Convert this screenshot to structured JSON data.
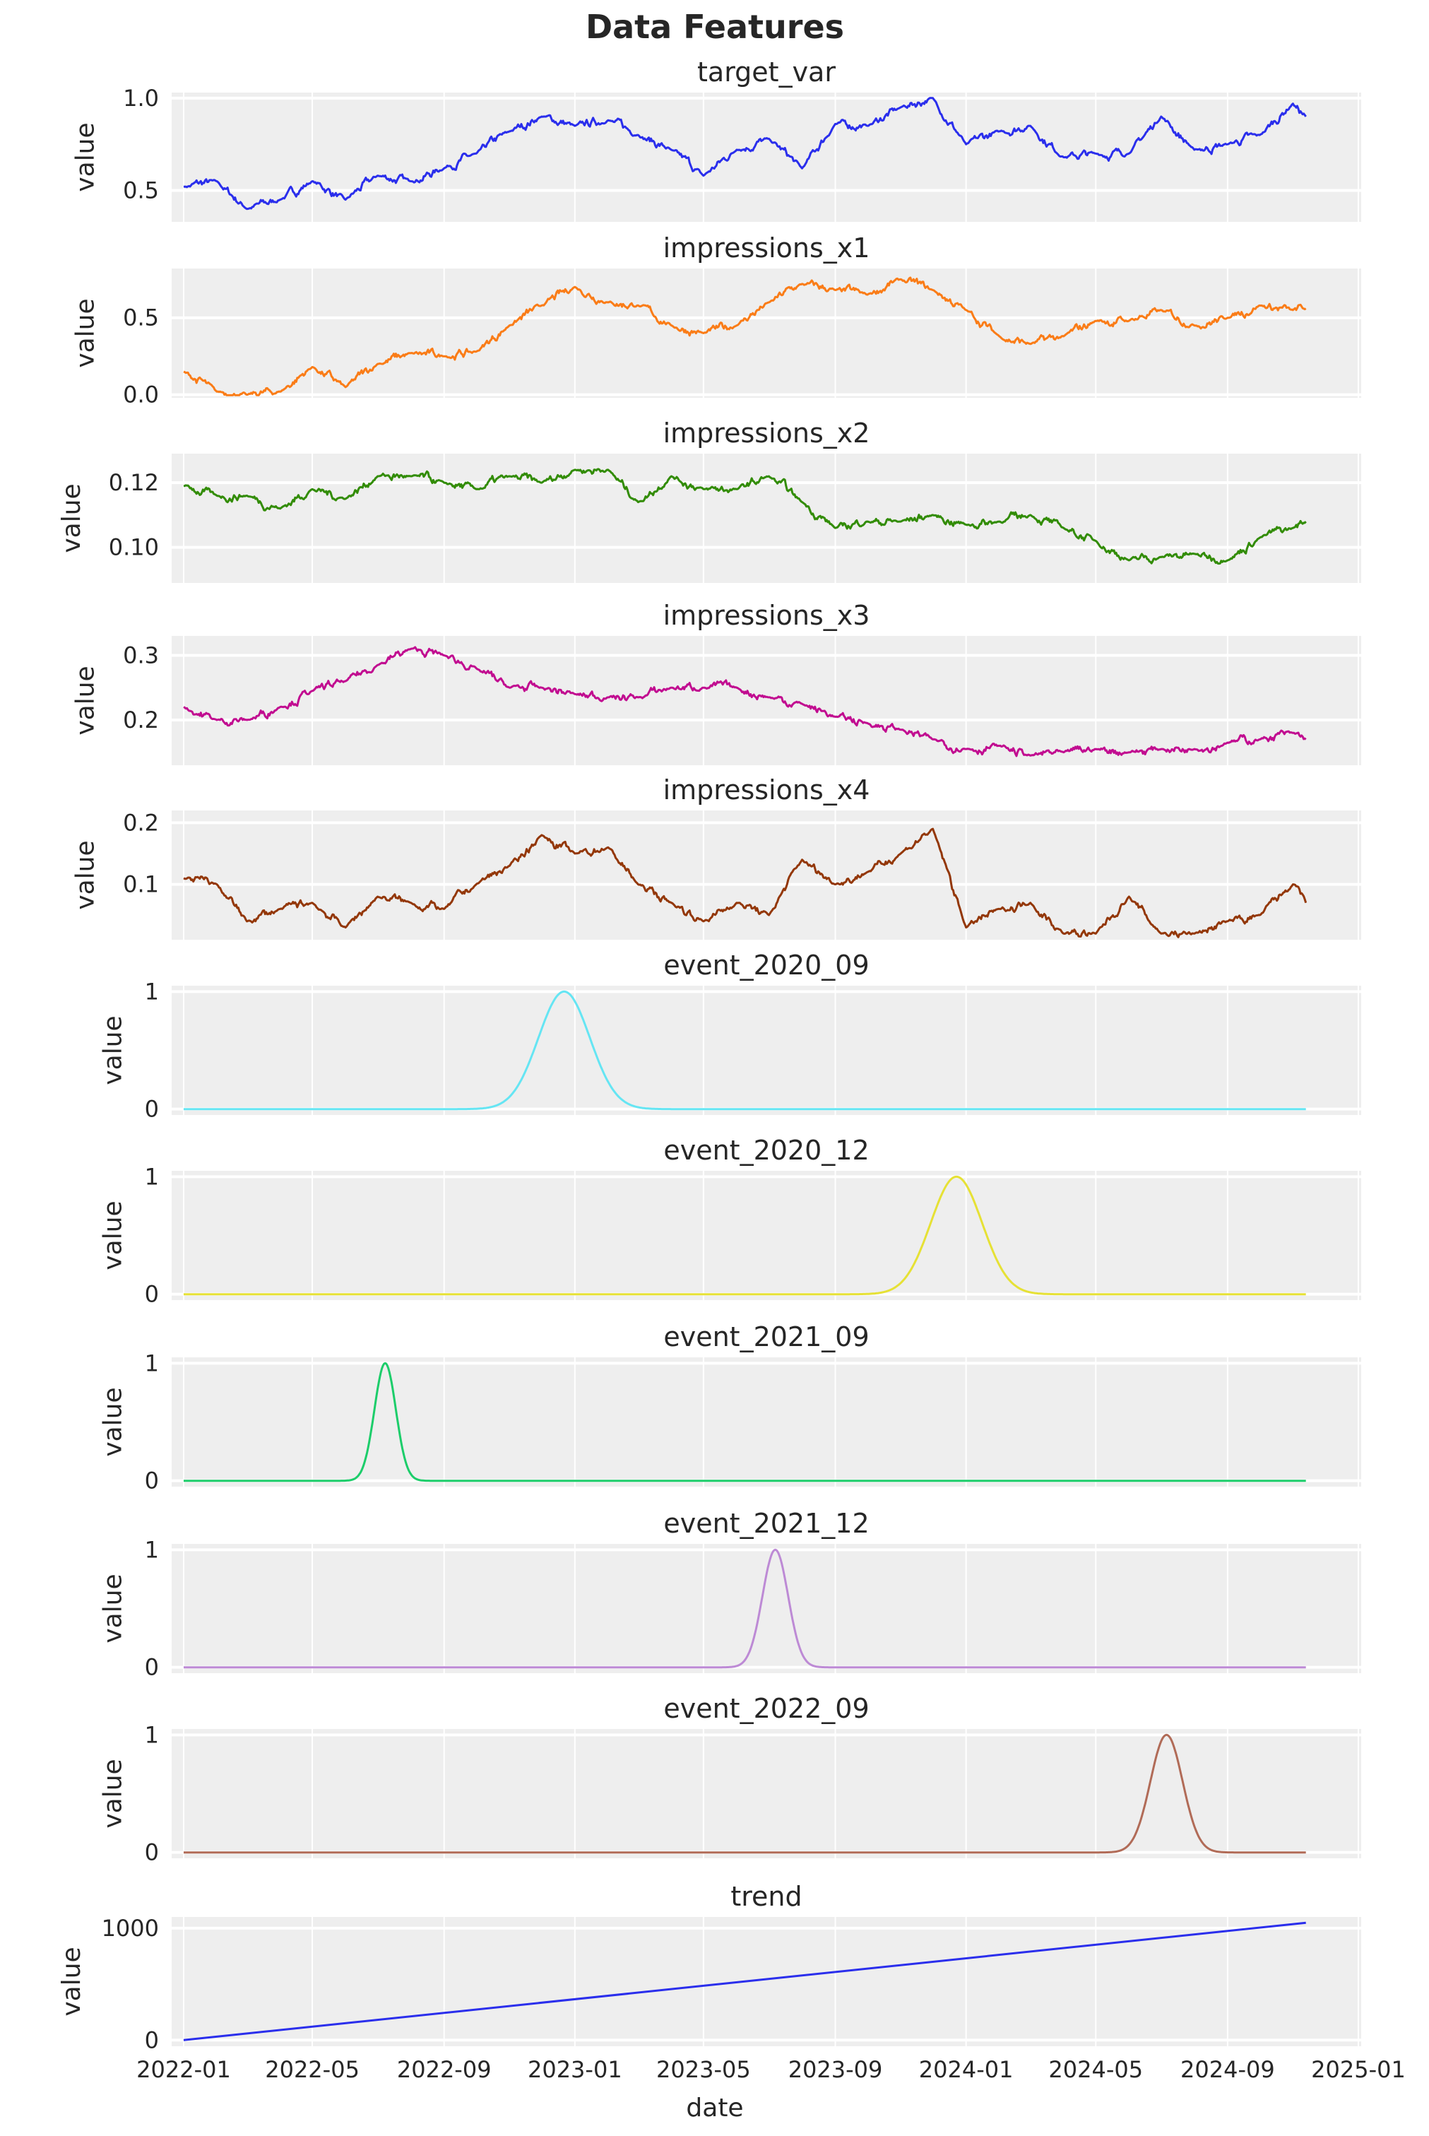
{
  "figure": {
    "title": "Data Features"
  },
  "chart_data": {
    "type": "line",
    "layout": "11 stacked subplots sharing a date x-axis",
    "xlabel": "date",
    "ylabel": "value",
    "grid": true,
    "x_ticks": [
      "2022-01",
      "2022-05",
      "2022-09",
      "2023-01",
      "2023-05",
      "2023-09",
      "2024-01",
      "2024-05",
      "2024-09",
      "2025-01"
    ],
    "xlim": [
      "2021-12-01",
      "2025-01-05"
    ],
    "x": [
      "2022-01-01",
      "2022-02-01",
      "2022-03-01",
      "2022-04-01",
      "2022-05-01",
      "2022-06-01",
      "2022-07-01",
      "2022-08-01",
      "2022-09-01",
      "2022-10-01",
      "2022-11-01",
      "2022-12-01",
      "2023-01-01",
      "2023-02-01",
      "2023-03-01",
      "2023-04-01",
      "2023-05-01",
      "2023-06-01",
      "2023-07-01",
      "2023-08-01",
      "2023-09-01",
      "2023-10-01",
      "2023-11-01",
      "2023-12-01",
      "2024-01-01",
      "2024-02-01",
      "2024-03-01",
      "2024-04-01",
      "2024-05-01",
      "2024-06-01",
      "2024-07-01",
      "2024-08-01",
      "2024-09-01",
      "2024-10-01",
      "2024-11-01",
      "2024-11-13"
    ],
    "panels": [
      {
        "title": "target_var",
        "color": "#2a2eec",
        "ylim": [
          0.33,
          1.03
        ],
        "yticks": [
          0.5,
          1.0
        ],
        "ytick_labels": [
          "0.5",
          "1.0"
        ],
        "values": [
          0.52,
          0.55,
          0.4,
          0.45,
          0.55,
          0.45,
          0.58,
          0.55,
          0.62,
          0.7,
          0.82,
          0.9,
          0.85,
          0.88,
          0.8,
          0.72,
          0.58,
          0.72,
          0.78,
          0.62,
          0.86,
          0.85,
          0.95,
          1.0,
          0.75,
          0.82,
          0.85,
          0.68,
          0.7,
          0.7,
          0.9,
          0.72,
          0.75,
          0.8,
          0.97,
          0.9
        ]
      },
      {
        "title": "impressions_x1",
        "color": "#fa7c17",
        "ylim": [
          -0.02,
          0.82
        ],
        "yticks": [
          0.0,
          0.5
        ],
        "ytick_labels": [
          "0.0",
          "0.5"
        ],
        "values": [
          0.15,
          0.02,
          0.0,
          0.02,
          0.18,
          0.05,
          0.2,
          0.27,
          0.25,
          0.28,
          0.45,
          0.58,
          0.7,
          0.6,
          0.58,
          0.45,
          0.4,
          0.45,
          0.6,
          0.72,
          0.68,
          0.65,
          0.75,
          0.68,
          0.55,
          0.38,
          0.33,
          0.38,
          0.48,
          0.48,
          0.55,
          0.45,
          0.5,
          0.58,
          0.55,
          0.56
        ]
      },
      {
        "title": "impressions_x2",
        "color": "#328c06",
        "ylim": [
          0.089,
          0.129
        ],
        "yticks": [
          0.1,
          0.12
        ],
        "ytick_labels": [
          "0.10",
          "0.12"
        ],
        "values": [
          0.119,
          0.116,
          0.116,
          0.112,
          0.118,
          0.115,
          0.122,
          0.122,
          0.12,
          0.118,
          0.122,
          0.12,
          0.124,
          0.124,
          0.114,
          0.122,
          0.118,
          0.118,
          0.122,
          0.114,
          0.106,
          0.108,
          0.108,
          0.11,
          0.107,
          0.108,
          0.11,
          0.106,
          0.102,
          0.096,
          0.097,
          0.098,
          0.096,
          0.103,
          0.106,
          0.108
        ]
      },
      {
        "title": "impressions_x3",
        "color": "#c10c90",
        "ylim": [
          0.13,
          0.33
        ],
        "yticks": [
          0.2,
          0.3
        ],
        "ytick_labels": [
          "0.2",
          "0.3"
        ],
        "values": [
          0.22,
          0.2,
          0.2,
          0.22,
          0.245,
          0.26,
          0.285,
          0.31,
          0.3,
          0.28,
          0.25,
          0.25,
          0.24,
          0.235,
          0.235,
          0.25,
          0.25,
          0.25,
          0.235,
          0.225,
          0.205,
          0.195,
          0.185,
          0.17,
          0.155,
          0.16,
          0.145,
          0.15,
          0.155,
          0.15,
          0.155,
          0.155,
          0.165,
          0.17,
          0.18,
          0.17
        ]
      },
      {
        "title": "impressions_x4",
        "color": "#933708",
        "ylim": [
          0.01,
          0.22
        ],
        "yticks": [
          0.1,
          0.2
        ],
        "ytick_labels": [
          "0.1",
          "0.2"
        ],
        "values": [
          0.11,
          0.1,
          0.04,
          0.06,
          0.07,
          0.03,
          0.08,
          0.07,
          0.06,
          0.1,
          0.13,
          0.18,
          0.15,
          0.16,
          0.1,
          0.07,
          0.04,
          0.07,
          0.05,
          0.14,
          0.1,
          0.12,
          0.15,
          0.19,
          0.03,
          0.06,
          0.07,
          0.02,
          0.02,
          0.08,
          0.02,
          0.02,
          0.04,
          0.05,
          0.1,
          0.07
        ]
      },
      {
        "title": "event_2020_09",
        "color": "#65e5f3",
        "ylim": [
          -0.05,
          1.05
        ],
        "yticks": [
          0,
          1
        ],
        "ytick_labels": [
          "0",
          "1"
        ],
        "peak_date": "2022-12-22",
        "peak_value": 1,
        "width_days": 24
      },
      {
        "title": "event_2020_12",
        "color": "#e6e135",
        "ylim": [
          -0.05,
          1.05
        ],
        "yticks": [
          0,
          1
        ],
        "ytick_labels": [
          "0",
          "1"
        ],
        "peak_date": "2023-12-23",
        "peak_value": 1,
        "width_days": 24
      },
      {
        "title": "event_2021_09",
        "color": "#1ccd6a",
        "ylim": [
          -0.05,
          1.05
        ],
        "yticks": [
          0,
          1
        ],
        "ytick_labels": [
          "0",
          "1"
        ],
        "peak_date": "2022-07-08",
        "peak_value": 1,
        "width_days": 10
      },
      {
        "title": "event_2021_12",
        "color": "#bd8ad5",
        "ylim": [
          -0.05,
          1.05
        ],
        "yticks": [
          0,
          1
        ],
        "ytick_labels": [
          "0",
          "1"
        ],
        "peak_date": "2023-07-07",
        "peak_value": 1,
        "width_days": 12
      },
      {
        "title": "event_2022_09",
        "color": "#b16b57",
        "ylim": [
          -0.05,
          1.05
        ],
        "yticks": [
          0,
          1
        ],
        "ytick_labels": [
          "0",
          "1"
        ],
        "peak_date": "2024-07-06",
        "peak_value": 1,
        "width_days": 15
      },
      {
        "title": "trend",
        "color": "#2a2eec",
        "ylim": [
          -55,
          1100
        ],
        "yticks": [
          0,
          1000
        ],
        "ytick_labels": [
          "0",
          "1000"
        ],
        "line_x": [
          "2022-01-01",
          "2024-11-13"
        ],
        "line_values": [
          0,
          1048
        ]
      }
    ]
  }
}
